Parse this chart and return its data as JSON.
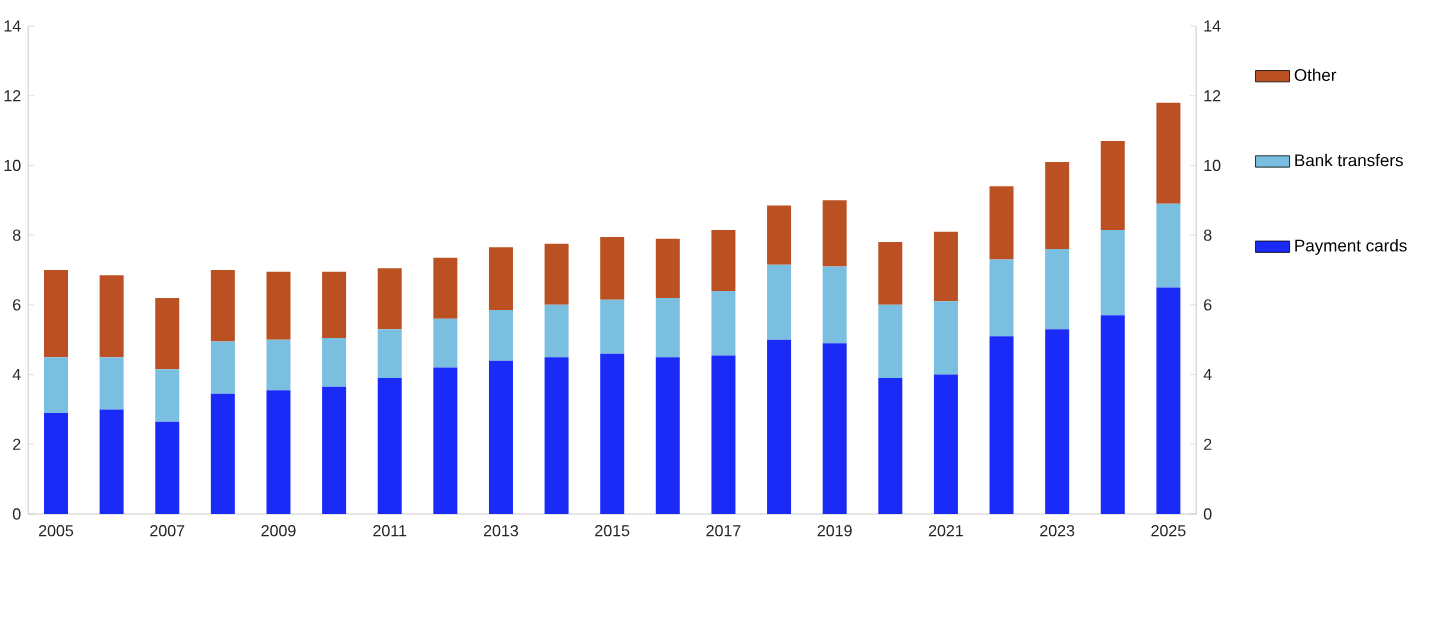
{
  "chart_data": {
    "type": "bar",
    "stacked": true,
    "categories": [
      "2005",
      null,
      "2007",
      null,
      "2009",
      null,
      "2011",
      null,
      "2013",
      null,
      "2015",
      null,
      "2017",
      null,
      "2019",
      null,
      "2021",
      null,
      "2023",
      null,
      "2025"
    ],
    "series": [
      {
        "name": "Payment cards",
        "color": "#1a2bf8",
        "values": [
          2.9,
          3.0,
          2.65,
          3.45,
          3.55,
          3.65,
          3.9,
          4.2,
          4.4,
          4.5,
          4.6,
          4.5,
          4.55,
          5.0,
          4.9,
          3.9,
          4.0,
          5.1,
          5.3,
          5.7,
          6.5
        ]
      },
      {
        "name": "Bank transfers",
        "color": "#7bbfe0",
        "values": [
          1.6,
          1.5,
          1.5,
          1.5,
          1.45,
          1.4,
          1.4,
          1.4,
          1.45,
          1.5,
          1.55,
          1.7,
          1.85,
          2.15,
          2.2,
          2.1,
          2.1,
          2.2,
          2.3,
          2.45,
          2.4
        ]
      },
      {
        "name": "Other",
        "color": "#bb5122",
        "values": [
          2.5,
          2.35,
          2.05,
          2.05,
          1.95,
          1.9,
          1.75,
          1.75,
          1.8,
          1.75,
          1.8,
          1.7,
          1.75,
          1.7,
          1.9,
          1.8,
          2.0,
          2.1,
          2.5,
          2.55,
          2.9
        ]
      }
    ],
    "ylim": [
      0,
      14
    ],
    "yticks": [
      0,
      2,
      4,
      6,
      8,
      10,
      12,
      14
    ],
    "y2lim": [
      0,
      14
    ],
    "y2ticks": [
      0,
      2,
      4,
      6,
      8,
      10,
      12,
      14
    ],
    "legend": "right",
    "grid": false
  }
}
